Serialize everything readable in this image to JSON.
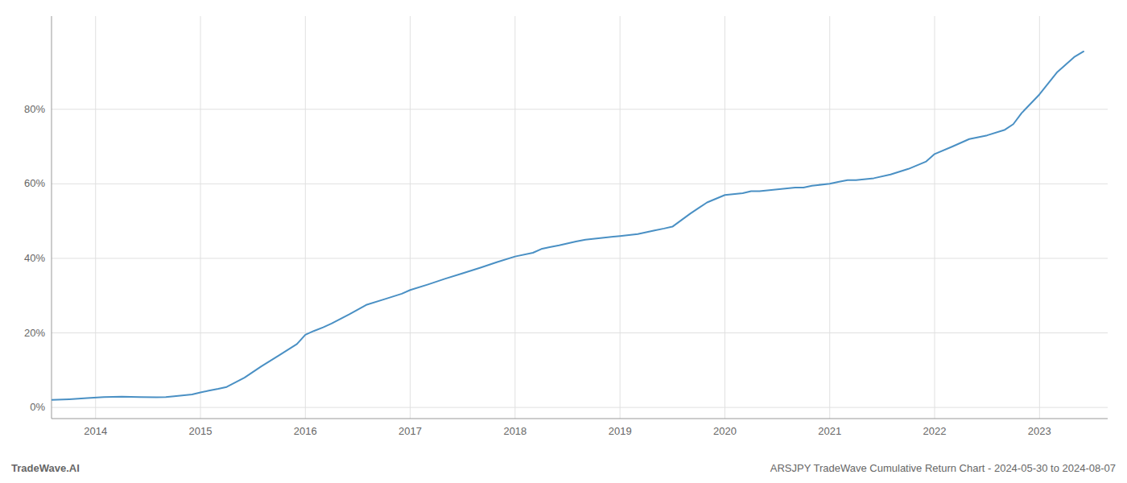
{
  "chart_data": {
    "type": "line",
    "title": "ARSJPY TradeWave Cumulative Return Chart - 2024-05-30 to 2024-08-07",
    "annotations": [
      "TradeWave.AI"
    ],
    "color": "#4a90c4",
    "grid": true,
    "xlim": [
      2013.58,
      2023.65
    ],
    "ylim": [
      -3,
      105
    ],
    "xticks": [
      2014,
      2015,
      2016,
      2017,
      2018,
      2019,
      2020,
      2021,
      2022,
      2023
    ],
    "yticks": [
      {
        "value": 0,
        "label": "0%"
      },
      {
        "value": 20,
        "label": "20%"
      },
      {
        "value": 40,
        "label": "40%"
      },
      {
        "value": 60,
        "label": "60%"
      },
      {
        "value": 80,
        "label": "80%"
      }
    ],
    "x": [
      2013.58,
      2013.75,
      2013.92,
      2014.08,
      2014.25,
      2014.42,
      2014.58,
      2014.67,
      2014.75,
      2014.92,
      2015.0,
      2015.08,
      2015.17,
      2015.25,
      2015.42,
      2015.58,
      2015.75,
      2015.92,
      2016.0,
      2016.08,
      2016.17,
      2016.25,
      2016.42,
      2016.58,
      2016.75,
      2016.92,
      2017.0,
      2017.17,
      2017.33,
      2017.5,
      2017.67,
      2017.83,
      2018.0,
      2018.17,
      2018.25,
      2018.33,
      2018.42,
      2018.58,
      2018.67,
      2018.83,
      2019.0,
      2019.17,
      2019.33,
      2019.42,
      2019.5,
      2019.67,
      2019.75,
      2019.83,
      2020.0,
      2020.17,
      2020.25,
      2020.33,
      2020.5,
      2020.67,
      2020.75,
      2020.83,
      2021.0,
      2021.08,
      2021.17,
      2021.25,
      2021.42,
      2021.58,
      2021.75,
      2021.92,
      2022.0,
      2022.17,
      2022.33,
      2022.5,
      2022.67,
      2022.75,
      2022.83,
      2023.0,
      2023.17,
      2023.33,
      2023.42
    ],
    "values": [
      2.0,
      2.2,
      2.5,
      2.8,
      2.9,
      2.8,
      2.7,
      2.8,
      3.0,
      3.5,
      4.0,
      4.5,
      5.0,
      5.5,
      8.0,
      11.0,
      14.0,
      17.0,
      19.5,
      20.5,
      21.5,
      22.5,
      25.0,
      27.5,
      29.0,
      30.5,
      31.5,
      33.0,
      34.5,
      36.0,
      37.5,
      39.0,
      40.5,
      41.5,
      42.5,
      43.0,
      43.5,
      44.5,
      45.0,
      45.5,
      46.0,
      46.5,
      47.5,
      48.0,
      48.5,
      52.0,
      53.5,
      55.0,
      57.0,
      57.5,
      58.0,
      58.0,
      58.5,
      59.0,
      59.0,
      59.5,
      60.0,
      60.5,
      61.0,
      61.0,
      61.5,
      62.5,
      64.0,
      66.0,
      68.0,
      70.0,
      72.0,
      73.0,
      74.5,
      76.0,
      79.0,
      84.0,
      90.0,
      94.0,
      95.5
    ]
  }
}
